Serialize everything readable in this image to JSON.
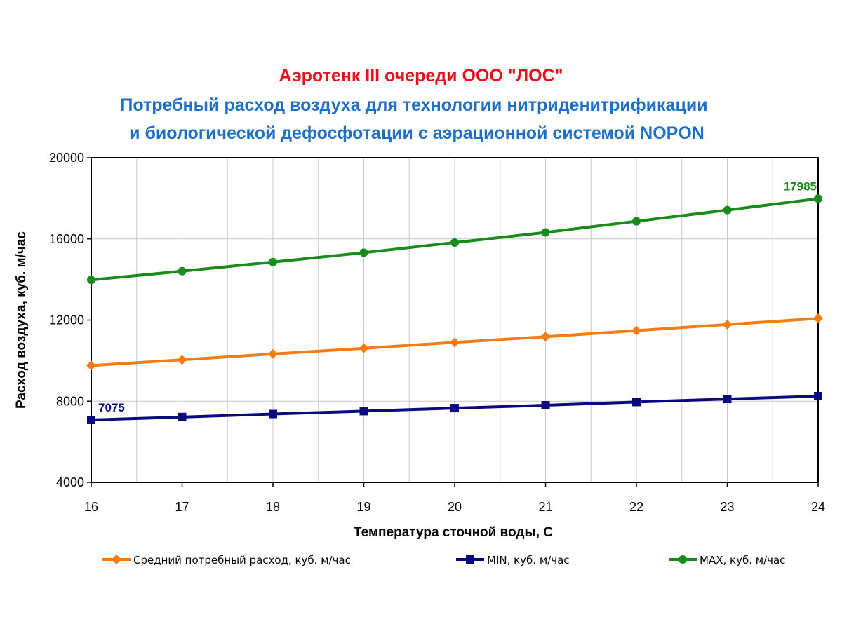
{
  "titles": {
    "line1": "Аэротенк III очереди  ООО \"ЛОС\"",
    "line2": "Потребный расход воздуха для  технологии нитриденитрификации",
    "line3": "и биологической дефосфотации с аэрационной системой NOPON"
  },
  "colors": {
    "title1": "#e3121b",
    "title2": "#1f6fc5",
    "avg": "#f57c14",
    "min": "#0a0a80",
    "max": "#1a8a1a",
    "grid": "#c8c8c8"
  },
  "chart_data": {
    "type": "line",
    "xlabel": "Температура сточной воды, С",
    "ylabel": "Расход воздуха, куб. м/час",
    "xlim": [
      16,
      24
    ],
    "ylim": [
      4000,
      20000
    ],
    "x_ticks": [
      16,
      17,
      18,
      19,
      20,
      21,
      22,
      23,
      24
    ],
    "y_ticks": [
      4000,
      8000,
      12000,
      16000,
      20000
    ],
    "grid": true,
    "legend_position": "bottom",
    "x": [
      16,
      17,
      18,
      19,
      20,
      21,
      22,
      23,
      24
    ],
    "series": [
      {
        "key": "avg",
        "name": "Средний потребный расход, куб. м/час",
        "marker": "diamond",
        "values": [
          9760,
          10040,
          10330,
          10610,
          10900,
          11180,
          11480,
          11780,
          12080
        ]
      },
      {
        "key": "min",
        "name": "MIN, куб. м/час",
        "marker": "square",
        "values": [
          7075,
          7220,
          7370,
          7510,
          7660,
          7800,
          7960,
          8110,
          8250
        ]
      },
      {
        "key": "max",
        "name": "MAX, куб. м/час",
        "marker": "circle",
        "values": [
          13980,
          14410,
          14860,
          15320,
          15820,
          16320,
          16870,
          17420,
          17985
        ]
      }
    ],
    "annotations": [
      {
        "series": "min",
        "x": 16,
        "value": 7075,
        "text": "7075"
      },
      {
        "series": "max",
        "x": 24,
        "value": 17985,
        "text": "17985"
      }
    ]
  }
}
